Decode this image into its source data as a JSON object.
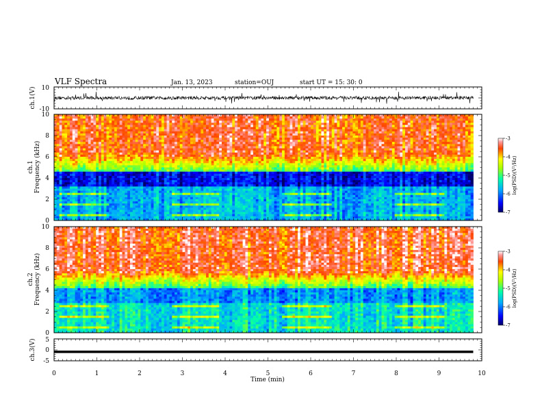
{
  "header": {
    "title": "VLF Spectra",
    "date": "Jan. 13, 2023",
    "station": "station=OUJ",
    "start_ut": "start UT =  15: 30: 0"
  },
  "chart_data": [
    {
      "type": "line",
      "panel": "ch1-waveform",
      "ylabel": "ch.1(V)",
      "ylim": [
        -10,
        10
      ],
      "yticks": [
        "10",
        "-10"
      ],
      "x_range_min": [
        0,
        9.8
      ],
      "color": "#000000"
    },
    {
      "type": "heatmap",
      "panel": "ch1-spectrogram",
      "ylabel": "ch.1\nFrequency (kHz)",
      "ylim": [
        0,
        10
      ],
      "yticks": [
        "0",
        "2",
        "4",
        "6",
        "8",
        "10"
      ],
      "x_range_min": [
        0,
        9.8
      ],
      "colorbar": {
        "label": "log(PSD)(V²/Hz)",
        "range": [
          -7,
          -3
        ],
        "ticks": [
          "-3",
          "-4",
          "-5",
          "-6",
          "-7"
        ]
      }
    },
    {
      "type": "heatmap",
      "panel": "ch2-spectrogram",
      "ylabel": "ch.2\nFrequency (kHz)",
      "ylim": [
        0,
        10
      ],
      "yticks": [
        "0",
        "2",
        "4",
        "6",
        "8",
        "10"
      ],
      "x_range_min": [
        0,
        9.8
      ],
      "colorbar": {
        "label": "log(PSD)(V²/Hz)",
        "range": [
          -7,
          -3
        ],
        "ticks": [
          "-3",
          "-4",
          "-5",
          "-6",
          "-7"
        ]
      }
    },
    {
      "type": "line",
      "panel": "ch3-waveform",
      "ylabel": "ch.3(V)",
      "ylim": [
        -5,
        5
      ],
      "yticks": [
        "5",
        "0",
        "-5"
      ],
      "x_range_min": [
        0,
        9.8
      ],
      "level": -0.9,
      "color": "#000000"
    }
  ],
  "xaxis": {
    "label": "Time (min)",
    "range": [
      0,
      10
    ],
    "ticks": [
      "0",
      "1",
      "2",
      "3",
      "4",
      "5",
      "6",
      "7",
      "8",
      "9",
      "10"
    ]
  }
}
